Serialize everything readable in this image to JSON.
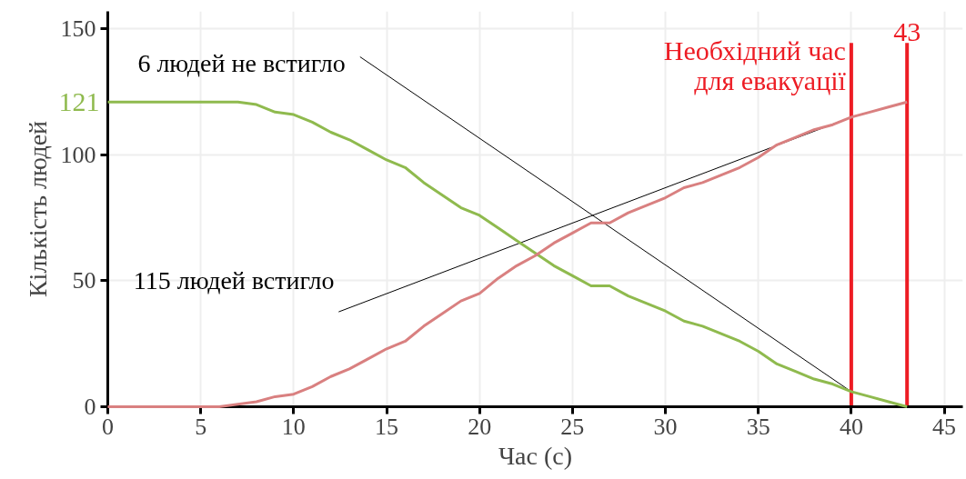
{
  "chart_data": {
    "type": "line",
    "xlabel": "Час (с)",
    "ylabel": "Кількість людей",
    "x": [
      0,
      1,
      2,
      3,
      4,
      5,
      6,
      7,
      8,
      9,
      10,
      11,
      12,
      13,
      14,
      15,
      16,
      17,
      18,
      19,
      20,
      21,
      22,
      23,
      24,
      25,
      26,
      27,
      28,
      29,
      30,
      31,
      32,
      33,
      34,
      35,
      36,
      37,
      38,
      39,
      40,
      41,
      42,
      43
    ],
    "series": [
      {
        "color": "#8fba4e",
        "values": [
          121,
          121,
          121,
          121,
          121,
          121,
          121,
          121,
          120,
          117,
          116,
          113,
          109,
          106,
          102,
          98,
          95,
          89,
          84,
          79,
          76,
          71,
          66,
          61,
          56,
          52,
          48,
          48,
          44,
          41,
          38,
          34,
          32,
          29,
          26,
          22,
          17,
          14,
          11,
          9,
          6,
          4,
          2,
          0
        ],
        "value_labels": [
          "121",
          null,
          null,
          null,
          null,
          null,
          null,
          null,
          null,
          null,
          null,
          null,
          null,
          null,
          null,
          null,
          null,
          null,
          null,
          null,
          null,
          null,
          null,
          null,
          null,
          null,
          null,
          null,
          null,
          null,
          null,
          null,
          null,
          null,
          null,
          null,
          null,
          null,
          null,
          null,
          null,
          null,
          null,
          null
        ]
      },
      {
        "color": "#d98080",
        "values": [
          0,
          0,
          0,
          0,
          0,
          0,
          0,
          1,
          2,
          4,
          5,
          8,
          12,
          15,
          19,
          23,
          26,
          32,
          37,
          42,
          45,
          51,
          56,
          60,
          65,
          69,
          73,
          73,
          77,
          80,
          83,
          87,
          89,
          92,
          95,
          99,
          104,
          107,
          110,
          112,
          115,
          117,
          119,
          121
        ]
      }
    ],
    "xlim": [
      0,
      46
    ],
    "ylim": [
      0,
      157
    ],
    "xticks": [
      0,
      5,
      10,
      15,
      20,
      25,
      30,
      35,
      40,
      45
    ],
    "yticks": [
      0,
      50,
      100,
      150
    ],
    "ref_lines": [
      {
        "axis": "x",
        "value": 40,
        "label": "Необхідний час\nдля евакуації",
        "color": "#ed1c24"
      },
      {
        "axis": "x",
        "value": 43,
        "label": "43",
        "color": "#ed1c24"
      }
    ],
    "annotations": [
      {
        "text": "6 людей не встигло",
        "x": 40,
        "y": 6
      },
      {
        "text": "115 людей встигло",
        "x": 40,
        "y": 115
      }
    ],
    "grid": true,
    "marker": "none",
    "line_style": "solid"
  }
}
